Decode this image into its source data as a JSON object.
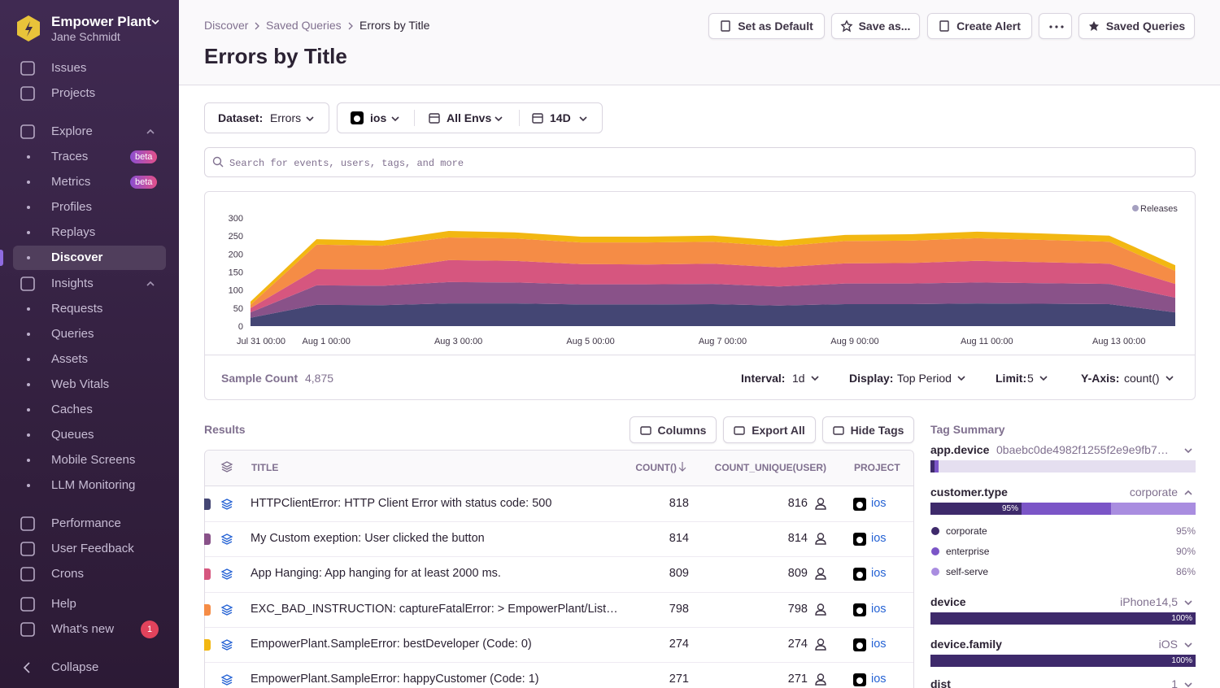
{
  "sidebar": {
    "org": "Empower Plant",
    "user": "Jane Schmidt",
    "items": [
      {
        "label": "Issues"
      },
      {
        "label": "Projects"
      },
      {
        "label": "Explore"
      },
      {
        "label": "Traces",
        "badge": "beta"
      },
      {
        "label": "Metrics",
        "badge": "beta"
      },
      {
        "label": "Profiles"
      },
      {
        "label": "Replays"
      },
      {
        "label": "Discover"
      },
      {
        "label": "Insights"
      },
      {
        "label": "Requests"
      },
      {
        "label": "Queries"
      },
      {
        "label": "Assets"
      },
      {
        "label": "Web Vitals"
      },
      {
        "label": "Caches"
      },
      {
        "label": "Queues"
      },
      {
        "label": "Mobile Screens"
      },
      {
        "label": "LLM Monitoring"
      },
      {
        "label": "Performance"
      },
      {
        "label": "User Feedback"
      },
      {
        "label": "Crons"
      },
      {
        "label": "Help"
      },
      {
        "label": "What's new",
        "badge": "1"
      },
      {
        "label": "Collapse"
      }
    ]
  },
  "header": {
    "breadcrumbs": [
      "Discover",
      "Saved Queries",
      "Errors by Title"
    ],
    "title": "Errors by Title",
    "actions": [
      "Set as Default",
      "Save as...",
      "Create Alert",
      "Saved Queries"
    ]
  },
  "filters": {
    "dataset_label": "Dataset:",
    "dataset_value": "Errors",
    "project": "ios",
    "environment": "All Envs",
    "period": "14D"
  },
  "search_placeholder": "Search for events, users, tags, and more",
  "chart_data": {
    "type": "stacked_area",
    "categories": [
      "Jul 31 00:00",
      "Aug 1 00:00",
      null,
      "Aug 3 00:00",
      null,
      "Aug 5 00:00",
      null,
      "Aug 7 00:00",
      null,
      "Aug 9 00:00",
      null,
      "Aug 11 00:00",
      null,
      "Aug 13 00:00",
      null
    ],
    "series": [
      {
        "color": "#444674",
        "values": [
          23,
          59,
          58,
          63,
          63,
          60,
          60,
          61,
          57,
          61,
          61,
          63,
          62,
          61,
          38
        ]
      },
      {
        "color": "#895289",
        "values": [
          15,
          54,
          54,
          59,
          58,
          56,
          56,
          56,
          53,
          57,
          57,
          58,
          57,
          56,
          41
        ]
      },
      {
        "color": "#d6567f",
        "values": [
          12,
          45,
          45,
          61,
          60,
          56,
          55,
          56,
          53,
          56,
          57,
          60,
          58,
          56,
          38
        ]
      },
      {
        "color": "#f58c46",
        "values": [
          9,
          68,
          66,
          63,
          62,
          60,
          61,
          61,
          58,
          62,
          62,
          63,
          62,
          61,
          36
        ]
      },
      {
        "color": "#f2b712",
        "values": [
          9,
          15,
          14,
          18,
          17,
          16,
          16,
          17,
          16,
          17,
          18,
          18,
          18,
          17,
          16
        ]
      }
    ],
    "ylim": [
      0,
      300
    ],
    "yticks": [
      0,
      50,
      100,
      150,
      200,
      250,
      300
    ],
    "grid": false,
    "legend": {
      "label": "Releases",
      "color": "#a5a0c0",
      "position": "top-right"
    }
  },
  "chart_footer": {
    "sample_label": "Sample Count",
    "sample_value": "4,875",
    "controls": [
      {
        "label": "Interval:",
        "value": "1d"
      },
      {
        "label": "Display:",
        "value": "Top Period"
      },
      {
        "label": "Limit:",
        "value": "5"
      },
      {
        "label": "Y-Axis:",
        "value": "count()"
      }
    ]
  },
  "results": {
    "title": "Results",
    "buttons": [
      "Columns",
      "Export All",
      "Hide Tags"
    ],
    "columns": [
      "TITLE",
      "COUNT()",
      "COUNT_UNIQUE(USER)",
      "PROJECT"
    ],
    "rows": [
      {
        "title": "HTTPClientError: HTTP Client Error with status code: 500",
        "count": 818,
        "count_unique": 816,
        "project": "ios"
      },
      {
        "title": "My Custom exeption: User clicked the button",
        "count": 814,
        "count_unique": 814,
        "project": "ios"
      },
      {
        "title": "App Hanging: App hanging for at least 2000 ms.",
        "count": 809,
        "count_unique": 809,
        "project": "ios"
      },
      {
        "title": "EXC_BAD_INSTRUCTION: captureFatalError: > EmpowerPlant/List…",
        "count": 798,
        "count_unique": 798,
        "project": "ios"
      },
      {
        "title": "EmpowerPlant.SampleError: bestDeveloper (Code: 0)",
        "count": 274,
        "count_unique": 274,
        "project": "ios"
      },
      {
        "title": "EmpowerPlant.SampleError: happyCustomer (Code: 1)",
        "count": 271,
        "count_unique": 271,
        "project": "ios"
      }
    ]
  },
  "tag_summary": {
    "title": "Tag Summary",
    "tags": [
      {
        "name": "app.device",
        "value": "0baebc0de4982f1255f2e9e9fb7…"
      },
      {
        "name": "customer.type",
        "value": "corporate",
        "bar_label": "95%",
        "breakdown": [
          {
            "label": "corporate",
            "pct": "95%"
          },
          {
            "label": "enterprise",
            "pct": "90%"
          },
          {
            "label": "self-serve",
            "pct": "86%"
          }
        ]
      },
      {
        "name": "device",
        "value": "iPhone14,5",
        "bar_label": "100%"
      },
      {
        "name": "device.family",
        "value": "iOS",
        "bar_label": "100%"
      },
      {
        "name": "dist",
        "value": "1"
      }
    ]
  }
}
